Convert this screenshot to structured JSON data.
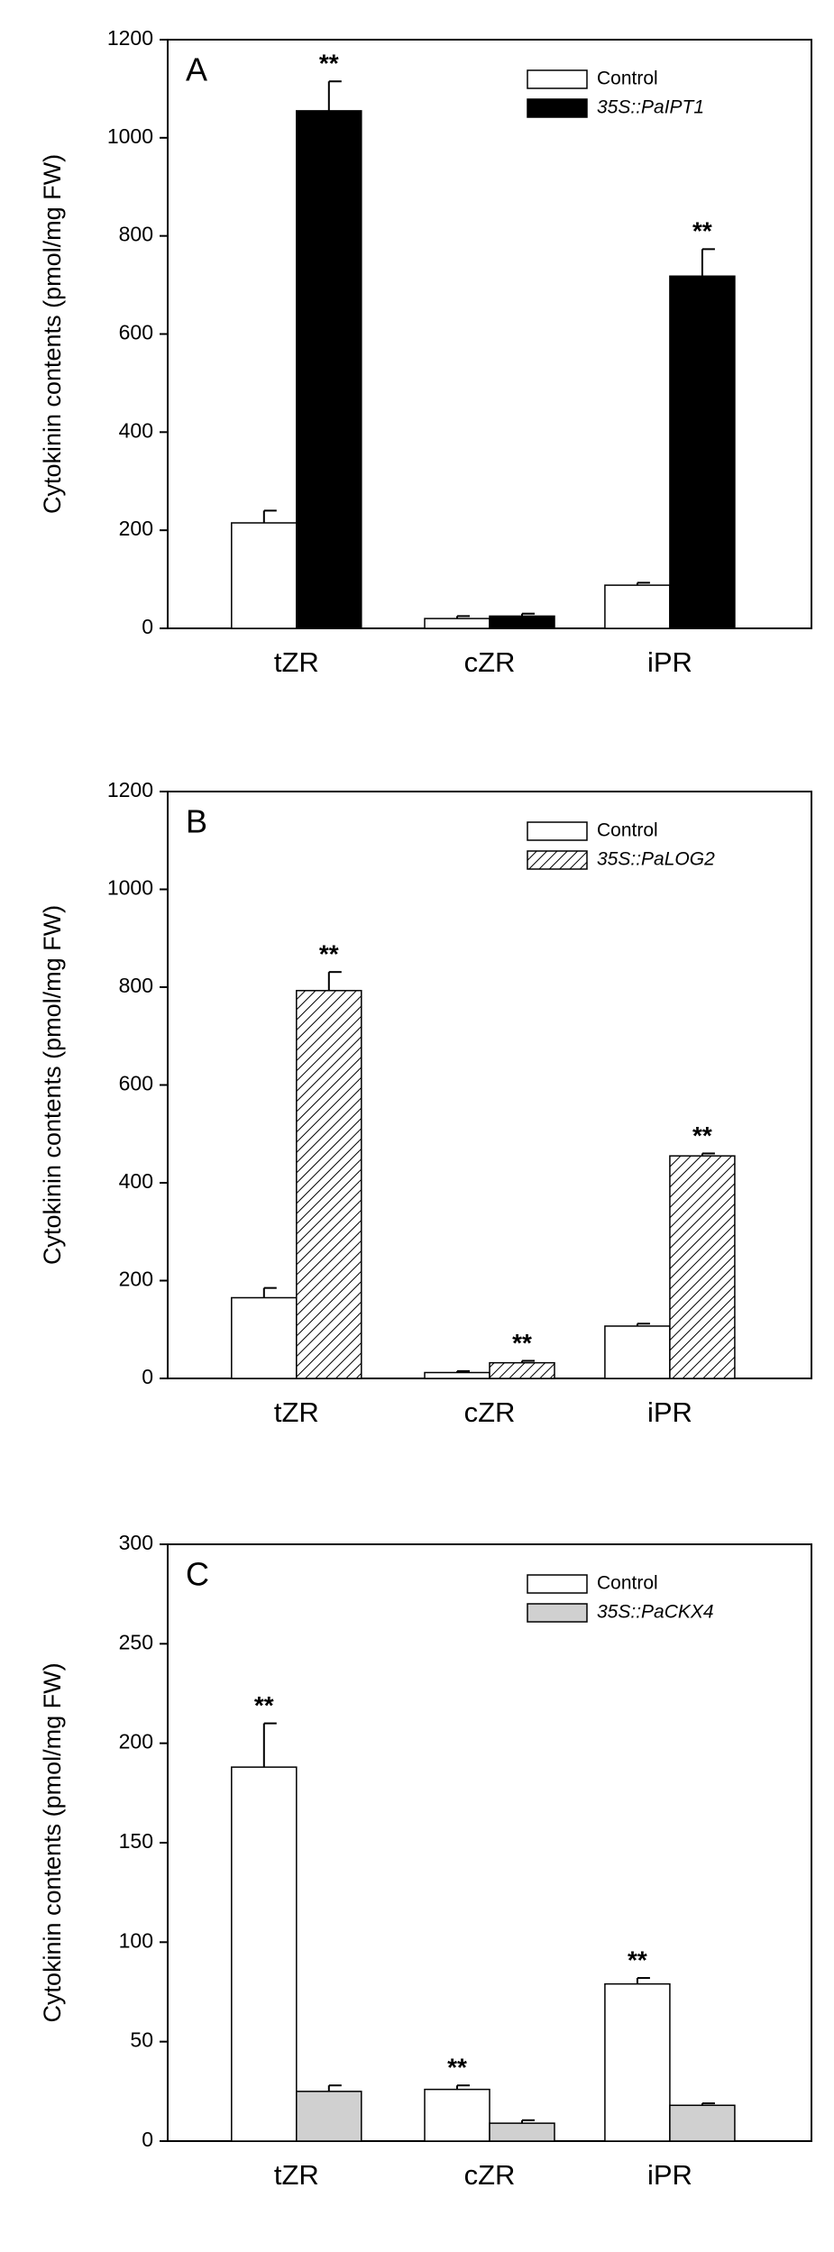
{
  "chart_data": [
    {
      "type": "bar",
      "panel_label": "A",
      "y_label": "Cytokinin contents (pmol/mg FW)",
      "categories": [
        "tZR",
        "cZR",
        "iPR"
      ],
      "ylim": [
        0,
        1200
      ],
      "yticks": [
        0,
        200,
        400,
        600,
        800,
        1000,
        1200
      ],
      "series": [
        {
          "name": "Control",
          "color": "#ffffff",
          "values": [
            215,
            20,
            88
          ],
          "errors": [
            25,
            5,
            5
          ],
          "significance": [
            null,
            null,
            null
          ]
        },
        {
          "name": "35S::PaIPT1",
          "color": "#000000",
          "values": [
            1055,
            25,
            718
          ],
          "errors": [
            60,
            5,
            55
          ],
          "significance": [
            "**",
            null,
            "**"
          ]
        }
      ]
    },
    {
      "type": "bar",
      "panel_label": "B",
      "y_label": "Cytokinin contents (pmol/mg FW)",
      "categories": [
        "tZR",
        "cZR",
        "iPR"
      ],
      "ylim": [
        0,
        1200
      ],
      "yticks": [
        0,
        200,
        400,
        600,
        800,
        1000,
        1200
      ],
      "series": [
        {
          "name": "Control",
          "color": "#ffffff",
          "values": [
            165,
            12,
            107
          ],
          "errors": [
            20,
            3,
            5
          ],
          "significance": [
            null,
            null,
            null
          ]
        },
        {
          "name": "35S::PaLOG2",
          "color": "#ffffff",
          "pattern": "hatch",
          "values": [
            793,
            32,
            455
          ],
          "errors": [
            38,
            4,
            5
          ],
          "significance": [
            "**",
            "**",
            "**"
          ]
        }
      ]
    },
    {
      "type": "bar",
      "panel_label": "C",
      "y_label": "Cytokinin contents (pmol/mg FW)",
      "categories": [
        "tZR",
        "cZR",
        "iPR"
      ],
      "ylim": [
        0,
        300
      ],
      "yticks": [
        0,
        50,
        100,
        150,
        200,
        250,
        300
      ],
      "series": [
        {
          "name": "Control",
          "color": "#ffffff",
          "values": [
            188,
            26,
            79
          ],
          "errors": [
            22,
            2,
            3
          ],
          "significance": [
            "**",
            "**",
            "**"
          ]
        },
        {
          "name": "35S::PaCKX4",
          "color": "#d0d0d0",
          "values": [
            25,
            9,
            18
          ],
          "errors": [
            3,
            1.5,
            1
          ],
          "significance": [
            null,
            null,
            null
          ]
        }
      ]
    }
  ]
}
